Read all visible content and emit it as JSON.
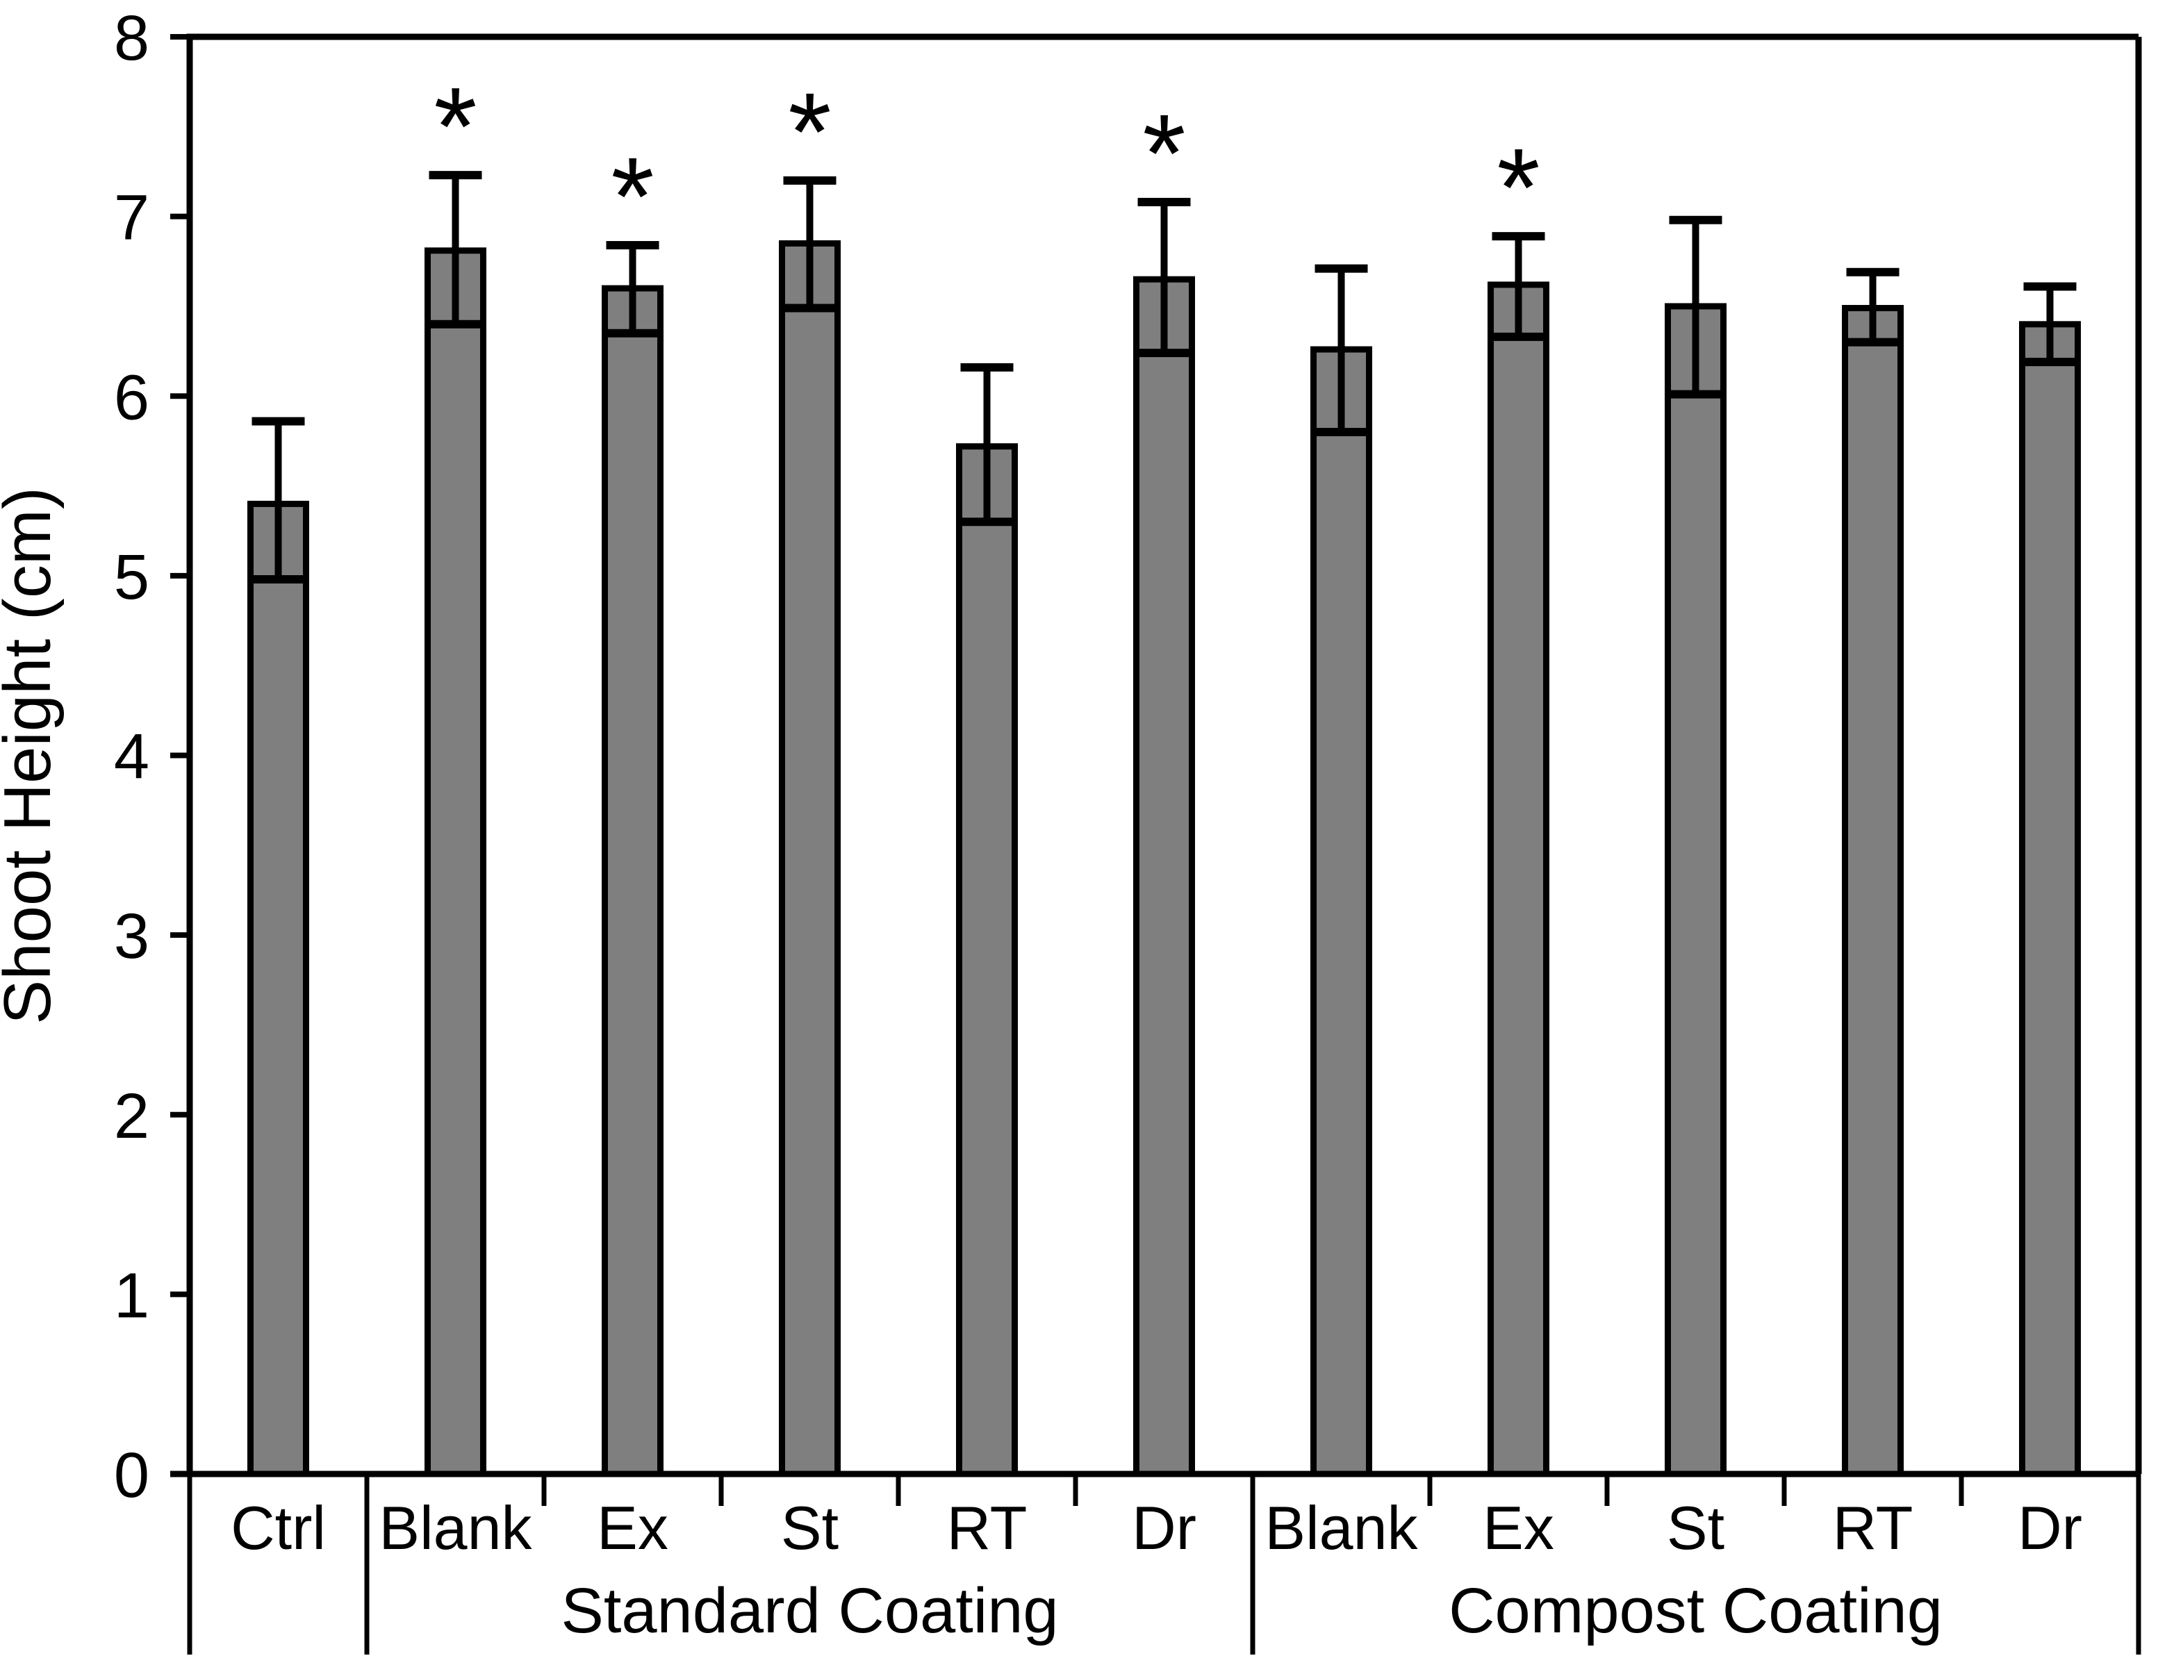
{
  "figure": {
    "background": "#ffffff"
  },
  "chart_data": {
    "type": "bar",
    "title": "",
    "xlabel": "",
    "ylabel": "Shoot Height (cm)",
    "ylim": [
      0,
      8
    ],
    "yticks": [
      "0",
      "1",
      "2",
      "3",
      "4",
      "5",
      "6",
      "7",
      "8"
    ],
    "grid": false,
    "legend": false,
    "bar_color": "#7f7f7f",
    "bar_border_color": "#000000",
    "error_bar_color": "#000000",
    "significance_symbol": "*",
    "categories": [
      "Ctrl",
      "Blank",
      "Ex",
      "St",
      "RT",
      "Dr",
      "Blank",
      "Ex",
      "St",
      "RT",
      "Dr"
    ],
    "series": [
      {
        "name": "Shoot Height (cm)",
        "values": [
          5.4,
          6.81,
          6.6,
          6.85,
          5.72,
          6.65,
          6.26,
          6.62,
          6.5,
          6.49,
          6.4
        ],
        "error_up": [
          0.46,
          0.42,
          0.24,
          0.35,
          0.44,
          0.43,
          0.45,
          0.27,
          0.48,
          0.2,
          0.21
        ],
        "error_down": [
          0.42,
          0.41,
          0.25,
          0.36,
          0.42,
          0.41,
          0.46,
          0.29,
          0.49,
          0.19,
          0.21
        ],
        "significant": [
          false,
          true,
          true,
          true,
          false,
          true,
          false,
          true,
          false,
          false,
          false
        ]
      }
    ],
    "group_labels": [
      {
        "label": "",
        "start": 0,
        "end": 1
      },
      {
        "label": "Standard Coating",
        "start": 1,
        "end": 6
      },
      {
        "label": "Compost Coating",
        "start": 6,
        "end": 11
      }
    ]
  }
}
